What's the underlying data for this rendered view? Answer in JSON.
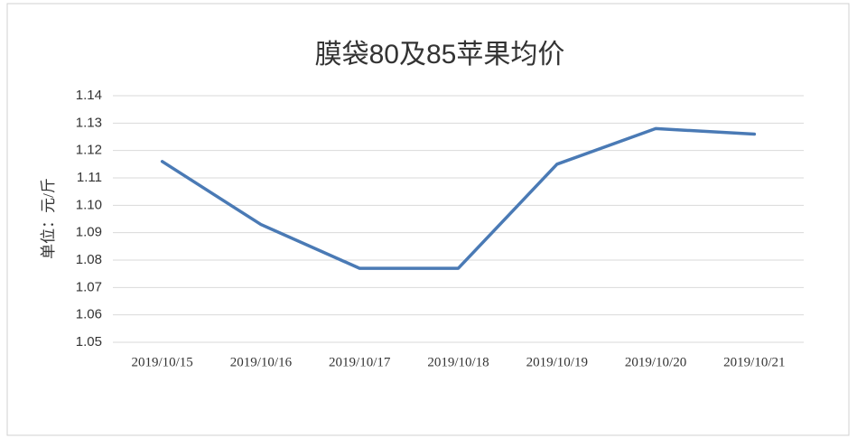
{
  "chart_data": {
    "type": "line",
    "title": "膜袋80及85苹果均价",
    "y_label": "单位：元/斤",
    "categories": [
      "2019/10/15",
      "2019/10/16",
      "2019/10/17",
      "2019/10/18",
      "2019/10/19",
      "2019/10/20",
      "2019/10/21"
    ],
    "series": [
      {
        "name": "膜袋80及85苹果均价",
        "color": "#4a7ab5",
        "values": [
          1.116,
          1.093,
          1.077,
          1.077,
          1.115,
          1.128,
          1.126
        ]
      }
    ],
    "ylim": [
      1.05,
      1.14
    ],
    "yticks": [
      {
        "value": 1.05,
        "label": "1.05"
      },
      1.06,
      1.07,
      1.08,
      1.09,
      {
        "value": 1.1,
        "label": "1.10"
      },
      1.11,
      1.12,
      1.13,
      1.14
    ],
    "grid": true
  }
}
